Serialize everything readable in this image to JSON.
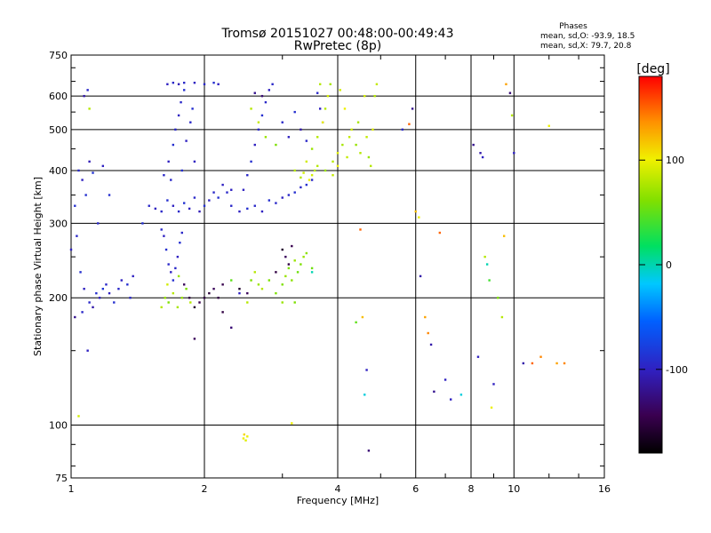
{
  "chart_data": {
    "type": "scatter",
    "title": "Tromsø 20151027 00:48:00-00:49:43",
    "subtitle": "RwPretec (8p)",
    "xlabel": "Frequency [MHz]",
    "ylabel": "Stationary phase Virtual Height [km]",
    "x_scale": "log",
    "y_scale": "log",
    "xlim": [
      1,
      16
    ],
    "ylim": [
      75,
      750
    ],
    "x_ticks": [
      1,
      2,
      4,
      6,
      8,
      10,
      16
    ],
    "y_ticks": [
      75,
      100,
      200,
      300,
      400,
      500,
      600,
      750
    ],
    "grid": true,
    "phases_box": {
      "header": "Phases",
      "line_o": "mean, sd,O: -93.9, 18.5",
      "line_x": "mean, sd,X:  79.7, 20.8"
    },
    "colorbar": {
      "label": "[deg]",
      "ticks": [
        100,
        0,
        -100
      ],
      "range": [
        -180,
        180
      ]
    },
    "points": [
      [
        1.02,
        330,
        -90
      ],
      [
        1.04,
        400,
        -95
      ],
      [
        1.06,
        380,
        -100
      ],
      [
        1.08,
        350,
        -90
      ],
      [
        1.1,
        420,
        -105
      ],
      [
        1.12,
        395,
        -88
      ],
      [
        1.15,
        300,
        -95
      ],
      [
        1.18,
        410,
        -100
      ],
      [
        1.07,
        600,
        -110
      ],
      [
        1.09,
        620,
        -95
      ],
      [
        1.1,
        560,
        80
      ],
      [
        1.22,
        350,
        -90
      ],
      [
        1.0,
        260,
        -100
      ],
      [
        1.03,
        280,
        -95
      ],
      [
        1.05,
        230,
        -90
      ],
      [
        1.07,
        210,
        -100
      ],
      [
        1.1,
        195,
        -95
      ],
      [
        1.12,
        190,
        -110
      ],
      [
        1.14,
        205,
        -90
      ],
      [
        1.16,
        200,
        -100
      ],
      [
        1.18,
        210,
        -85
      ],
      [
        1.2,
        215,
        -95
      ],
      [
        1.22,
        205,
        -100
      ],
      [
        1.25,
        195,
        -90
      ],
      [
        1.28,
        210,
        -95
      ],
      [
        1.3,
        220,
        -100
      ],
      [
        1.02,
        180,
        -120
      ],
      [
        1.06,
        185,
        -95
      ],
      [
        1.09,
        150,
        -100
      ],
      [
        1.04,
        105,
        90
      ],
      [
        1.34,
        215,
        -90
      ],
      [
        1.36,
        200,
        -95
      ],
      [
        1.38,
        225,
        -100
      ],
      [
        1.45,
        300,
        -90
      ],
      [
        1.5,
        330,
        -95
      ],
      [
        1.55,
        325,
        -100
      ],
      [
        1.6,
        320,
        -95
      ],
      [
        1.65,
        340,
        -90
      ],
      [
        1.7,
        330,
        -100
      ],
      [
        1.75,
        320,
        -95
      ],
      [
        1.8,
        335,
        -88
      ],
      [
        1.85,
        325,
        -100
      ],
      [
        1.9,
        345,
        -95
      ],
      [
        1.95,
        320,
        -105
      ],
      [
        2.0,
        330,
        -90
      ],
      [
        2.05,
        340,
        -100
      ],
      [
        2.1,
        355,
        -95
      ],
      [
        2.15,
        345,
        -90
      ],
      [
        2.2,
        370,
        -100
      ],
      [
        2.25,
        355,
        -95
      ],
      [
        2.3,
        360,
        -100
      ],
      [
        1.62,
        390,
        -95
      ],
      [
        1.66,
        420,
        -100
      ],
      [
        1.7,
        460,
        -90
      ],
      [
        1.72,
        500,
        -95
      ],
      [
        1.75,
        540,
        -100
      ],
      [
        1.77,
        580,
        -95
      ],
      [
        1.8,
        620,
        -90
      ],
      [
        1.65,
        640,
        -100
      ],
      [
        1.7,
        645,
        -95
      ],
      [
        1.75,
        640,
        -105
      ],
      [
        1.8,
        645,
        -95
      ],
      [
        1.9,
        645,
        -100
      ],
      [
        2.0,
        640,
        -95
      ],
      [
        2.1,
        645,
        -90
      ],
      [
        2.15,
        640,
        -100
      ],
      [
        1.82,
        470,
        -100
      ],
      [
        1.86,
        520,
        -95
      ],
      [
        1.88,
        560,
        -90
      ],
      [
        1.9,
        420,
        -100
      ],
      [
        1.78,
        400,
        -90
      ],
      [
        1.68,
        380,
        -95
      ],
      [
        2.3,
        330,
        -95
      ],
      [
        2.4,
        320,
        -100
      ],
      [
        2.5,
        325,
        -90
      ],
      [
        2.6,
        330,
        -95
      ],
      [
        2.7,
        320,
        -100
      ],
      [
        2.8,
        340,
        -90
      ],
      [
        2.9,
        335,
        -95
      ],
      [
        3.0,
        345,
        -100
      ],
      [
        3.1,
        350,
        -95
      ],
      [
        3.2,
        355,
        -90
      ],
      [
        3.3,
        365,
        -95
      ],
      [
        3.4,
        370,
        -90
      ],
      [
        3.5,
        380,
        -95
      ],
      [
        2.45,
        360,
        -100
      ],
      [
        2.5,
        390,
        -95
      ],
      [
        2.55,
        420,
        -90
      ],
      [
        2.6,
        460,
        -100
      ],
      [
        2.65,
        500,
        -95
      ],
      [
        2.7,
        540,
        -90
      ],
      [
        2.75,
        580,
        -95
      ],
      [
        2.8,
        620,
        -100
      ],
      [
        2.85,
        640,
        -95
      ],
      [
        2.6,
        610,
        -120
      ],
      [
        2.7,
        600,
        -130
      ],
      [
        2.9,
        460,
        60
      ],
      [
        3.0,
        520,
        -95
      ],
      [
        3.1,
        480,
        -100
      ],
      [
        3.2,
        550,
        -90
      ],
      [
        3.3,
        500,
        -110
      ],
      [
        3.4,
        470,
        -95
      ],
      [
        3.6,
        610,
        -95
      ],
      [
        3.65,
        560,
        -100
      ],
      [
        3.7,
        520,
        -90
      ],
      [
        2.55,
        560,
        80
      ],
      [
        2.65,
        520,
        85
      ],
      [
        2.75,
        480,
        70
      ],
      [
        3.2,
        400,
        80
      ],
      [
        3.4,
        420,
        90
      ],
      [
        3.5,
        450,
        70
      ],
      [
        3.6,
        480,
        80
      ],
      [
        3.7,
        520,
        100
      ],
      [
        3.75,
        560,
        80
      ],
      [
        3.8,
        600,
        90
      ],
      [
        3.85,
        640,
        75
      ],
      [
        3.9,
        420,
        80
      ],
      [
        4.0,
        440,
        95
      ],
      [
        4.1,
        460,
        75
      ],
      [
        4.2,
        430,
        85
      ],
      [
        3.5,
        390,
        90
      ],
      [
        3.6,
        410,
        80
      ],
      [
        3.75,
        400,
        70
      ],
      [
        3.9,
        390,
        85
      ],
      [
        4.0,
        410,
        100
      ],
      [
        3.3,
        385,
        80
      ],
      [
        3.35,
        395,
        90
      ],
      [
        3.45,
        380,
        100
      ],
      [
        3.55,
        400,
        80
      ],
      [
        4.25,
        480,
        85
      ],
      [
        4.3,
        500,
        90
      ],
      [
        4.4,
        460,
        70
      ],
      [
        4.45,
        520,
        75
      ],
      [
        4.5,
        440,
        80
      ],
      [
        4.6,
        600,
        90
      ],
      [
        4.65,
        480,
        85
      ],
      [
        4.7,
        430,
        70
      ],
      [
        4.75,
        410,
        80
      ],
      [
        4.8,
        500,
        95
      ],
      [
        4.85,
        600,
        80
      ],
      [
        4.9,
        640,
        85
      ],
      [
        3.65,
        640,
        80
      ],
      [
        4.05,
        620,
        90
      ],
      [
        4.15,
        560,
        100
      ],
      [
        1.6,
        290,
        -95
      ],
      [
        1.62,
        280,
        -100
      ],
      [
        1.64,
        260,
        -90
      ],
      [
        1.66,
        240,
        -95
      ],
      [
        1.68,
        230,
        -100
      ],
      [
        1.7,
        220,
        -90
      ],
      [
        1.72,
        235,
        -95
      ],
      [
        1.74,
        250,
        -100
      ],
      [
        1.76,
        270,
        -90
      ],
      [
        1.78,
        285,
        -95
      ],
      [
        1.6,
        190,
        80
      ],
      [
        1.63,
        200,
        70
      ],
      [
        1.66,
        195,
        60
      ],
      [
        1.7,
        205,
        80
      ],
      [
        1.74,
        190,
        75
      ],
      [
        1.78,
        200,
        70
      ],
      [
        1.82,
        210,
        60
      ],
      [
        1.86,
        195,
        80
      ],
      [
        1.65,
        215,
        90
      ],
      [
        1.75,
        225,
        70
      ],
      [
        1.8,
        215,
        -140
      ],
      [
        1.85,
        200,
        -150
      ],
      [
        1.9,
        190,
        -160
      ],
      [
        1.95,
        195,
        -145
      ],
      [
        2.0,
        200,
        -150
      ],
      [
        2.05,
        205,
        -155
      ],
      [
        2.1,
        210,
        -140
      ],
      [
        2.15,
        200,
        -150
      ],
      [
        2.2,
        215,
        -145
      ],
      [
        2.3,
        220,
        50
      ],
      [
        2.4,
        210,
        -160
      ],
      [
        2.5,
        205,
        -140
      ],
      [
        2.55,
        220,
        60
      ],
      [
        2.6,
        230,
        80
      ],
      [
        2.65,
        215,
        70
      ],
      [
        2.7,
        210,
        80
      ],
      [
        2.8,
        220,
        60
      ],
      [
        2.9,
        230,
        -150
      ],
      [
        3.0,
        260,
        -160
      ],
      [
        3.05,
        250,
        -140
      ],
      [
        3.1,
        240,
        -150
      ],
      [
        3.15,
        265,
        -145
      ],
      [
        3.0,
        215,
        60
      ],
      [
        3.05,
        225,
        70
      ],
      [
        3.1,
        235,
        60
      ],
      [
        3.15,
        220,
        65
      ],
      [
        3.2,
        245,
        70
      ],
      [
        3.25,
        230,
        55
      ],
      [
        3.3,
        240,
        60
      ],
      [
        3.35,
        250,
        70
      ],
      [
        3.4,
        255,
        65
      ],
      [
        3.5,
        235,
        55
      ],
      [
        2.9,
        205,
        60
      ],
      [
        3.0,
        195,
        70
      ],
      [
        1.9,
        160,
        -140
      ],
      [
        2.2,
        185,
        -150
      ],
      [
        2.3,
        170,
        -130
      ],
      [
        2.4,
        205,
        -100
      ],
      [
        2.5,
        195,
        80
      ],
      [
        3.2,
        195,
        60
      ],
      [
        2.45,
        93,
        100
      ],
      [
        2.48,
        92,
        95
      ],
      [
        2.5,
        94,
        100
      ],
      [
        2.46,
        95,
        110
      ],
      [
        3.15,
        101,
        100
      ],
      [
        3.5,
        230,
        0
      ],
      [
        4.4,
        175,
        50
      ],
      [
        4.5,
        290,
        150
      ],
      [
        4.55,
        180,
        120
      ],
      [
        4.6,
        118,
        -10
      ],
      [
        4.65,
        135,
        -100
      ],
      [
        4.7,
        87,
        -130
      ],
      [
        5.6,
        500,
        -95
      ],
      [
        5.8,
        515,
        150
      ],
      [
        5.9,
        560,
        -120
      ],
      [
        6.0,
        320,
        120
      ],
      [
        6.1,
        310,
        100
      ],
      [
        6.15,
        225,
        -110
      ],
      [
        6.3,
        180,
        130
      ],
      [
        6.4,
        165,
        140
      ],
      [
        6.5,
        155,
        -110
      ],
      [
        6.6,
        120,
        -120
      ],
      [
        6.8,
        285,
        150
      ],
      [
        7.0,
        128,
        -100
      ],
      [
        7.2,
        115,
        -100
      ],
      [
        7.6,
        118,
        -10
      ],
      [
        8.3,
        145,
        -100
      ],
      [
        8.4,
        440,
        -110
      ],
      [
        8.5,
        430,
        -100
      ],
      [
        8.6,
        250,
        80
      ],
      [
        8.7,
        240,
        0
      ],
      [
        8.8,
        220,
        40
      ],
      [
        8.9,
        110,
        100
      ],
      [
        9.0,
        125,
        -100
      ],
      [
        9.2,
        200,
        60
      ],
      [
        9.4,
        180,
        80
      ],
      [
        9.5,
        280,
        120
      ],
      [
        9.6,
        640,
        130
      ],
      [
        9.8,
        610,
        -130
      ],
      [
        9.9,
        540,
        80
      ],
      [
        10.0,
        440,
        -100
      ],
      [
        10.5,
        140,
        -110
      ],
      [
        11.0,
        140,
        150
      ],
      [
        11.5,
        145,
        140
      ],
      [
        12.0,
        510,
        100
      ],
      [
        12.5,
        140,
        130
      ],
      [
        13.0,
        140,
        140
      ],
      [
        8.1,
        460,
        -120
      ]
    ]
  }
}
